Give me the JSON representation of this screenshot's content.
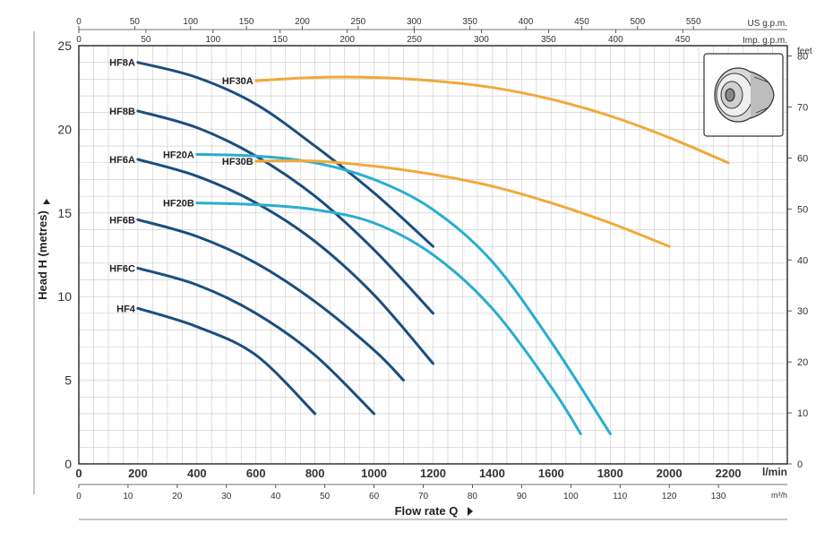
{
  "chart_data": {
    "type": "line",
    "ylabel": "Head H (metres)",
    "xlabel": "Flow rate  Q",
    "ylim": [
      0,
      25
    ],
    "xlim": [
      0,
      2400
    ],
    "grid": true,
    "y_ticks": [
      0,
      5,
      10,
      15,
      20,
      25
    ],
    "x_ticks": [
      0,
      200,
      400,
      600,
      800,
      1000,
      1200,
      1400,
      1600,
      1800,
      2000,
      2200
    ],
    "x_unit": "l/min",
    "feet_unit": "feet",
    "feet_ticks": [
      0,
      10,
      20,
      30,
      40,
      50,
      60,
      70,
      80
    ],
    "m3h_unit": "m³/h",
    "m3h_ticks": [
      0,
      10,
      20,
      30,
      40,
      50,
      60,
      70,
      80,
      90,
      100,
      110,
      120,
      130
    ],
    "us_gpm_unit": "US g.p.m.",
    "us_gpm_ticks": [
      0,
      50,
      100,
      150,
      200,
      250,
      300,
      350,
      400,
      450,
      500,
      550
    ],
    "imp_gpm_unit": "Imp. g.p.m.",
    "imp_gpm_ticks": [
      0,
      50,
      100,
      150,
      200,
      250,
      300,
      350,
      400,
      450
    ],
    "series": [
      {
        "name": "HF8A",
        "color": "#1b4e7e",
        "points": [
          [
            200,
            24.0
          ],
          [
            400,
            23.1
          ],
          [
            600,
            21.5
          ],
          [
            800,
            19.0
          ],
          [
            1000,
            16.2
          ],
          [
            1200,
            13.0
          ]
        ]
      },
      {
        "name": "HF8B",
        "color": "#1b4e7e",
        "points": [
          [
            200,
            21.1
          ],
          [
            400,
            20.1
          ],
          [
            600,
            18.4
          ],
          [
            800,
            16.0
          ],
          [
            1000,
            12.8
          ],
          [
            1200,
            9.0
          ]
        ]
      },
      {
        "name": "HF6A",
        "color": "#1b4e7e",
        "points": [
          [
            200,
            18.2
          ],
          [
            400,
            17.2
          ],
          [
            600,
            15.6
          ],
          [
            800,
            13.3
          ],
          [
            1000,
            10.1
          ],
          [
            1200,
            6.0
          ]
        ]
      },
      {
        "name": "HF6B",
        "color": "#1b4e7e",
        "points": [
          [
            200,
            14.6
          ],
          [
            400,
            13.6
          ],
          [
            600,
            12.0
          ],
          [
            800,
            9.7
          ],
          [
            1000,
            6.8
          ],
          [
            1100,
            5.0
          ]
        ]
      },
      {
        "name": "HF6C",
        "color": "#1b4e7e",
        "points": [
          [
            200,
            11.7
          ],
          [
            400,
            10.7
          ],
          [
            600,
            9.0
          ],
          [
            800,
            6.5
          ],
          [
            1000,
            3.0
          ]
        ]
      },
      {
        "name": "HF4",
        "color": "#1b4e7e",
        "points": [
          [
            200,
            9.3
          ],
          [
            400,
            8.2
          ],
          [
            600,
            6.5
          ],
          [
            800,
            3.0
          ]
        ]
      },
      {
        "name": "HF20A",
        "color": "#27aed0",
        "points": [
          [
            400,
            18.5
          ],
          [
            600,
            18.4
          ],
          [
            800,
            18.0
          ],
          [
            1000,
            17.0
          ],
          [
            1200,
            15.2
          ],
          [
            1400,
            12.1
          ],
          [
            1600,
            7.3
          ],
          [
            1800,
            1.8
          ]
        ]
      },
      {
        "name": "HF20B",
        "color": "#27aed0",
        "points": [
          [
            400,
            15.6
          ],
          [
            600,
            15.5
          ],
          [
            800,
            15.2
          ],
          [
            1000,
            14.4
          ],
          [
            1200,
            12.5
          ],
          [
            1400,
            9.3
          ],
          [
            1600,
            4.6
          ],
          [
            1700,
            1.8
          ]
        ]
      },
      {
        "name": "HF30A",
        "color": "#f1a93b",
        "points": [
          [
            600,
            22.9
          ],
          [
            800,
            23.1
          ],
          [
            1000,
            23.1
          ],
          [
            1200,
            22.9
          ],
          [
            1400,
            22.5
          ],
          [
            1600,
            21.8
          ],
          [
            1800,
            20.8
          ],
          [
            2000,
            19.5
          ],
          [
            2200,
            18.0
          ]
        ]
      },
      {
        "name": "HF30B",
        "color": "#f1a93b",
        "points": [
          [
            600,
            18.1
          ],
          [
            800,
            18.1
          ],
          [
            1000,
            17.8
          ],
          [
            1200,
            17.3
          ],
          [
            1400,
            16.6
          ],
          [
            1600,
            15.6
          ],
          [
            1800,
            14.4
          ],
          [
            2000,
            13.0
          ]
        ]
      }
    ]
  }
}
